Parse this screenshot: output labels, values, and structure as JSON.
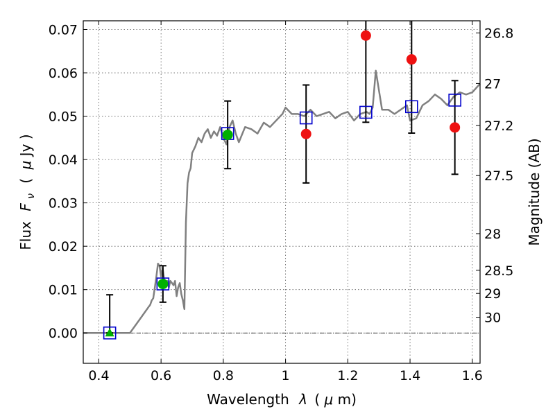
{
  "chart_data": {
    "type": "scatter",
    "xlabel_text": "Wavelength",
    "xlabel_sym": "λ",
    "xlabel_unit_pre": "(",
    "xlabel_mu": "μ",
    "xlabel_unit_post": "m)",
    "ylabel_text": "Flux",
    "ylabel_sym": "F",
    "ylabel_sub": "ν",
    "ylabel_unit_pre": "(",
    "ylabel_mu": "μ",
    "ylabel_unit_post": "Jy )",
    "y2label": "Magnitude (AB)",
    "xlim": [
      0.35,
      1.625
    ],
    "ylim": [
      -0.007,
      0.072
    ],
    "x_ticks": [
      {
        "value": 0.4,
        "label": "0.4"
      },
      {
        "value": 0.6,
        "label": "0.6"
      },
      {
        "value": 0.8,
        "label": "0.8"
      },
      {
        "value": 1.0,
        "label": "1"
      },
      {
        "value": 1.2,
        "label": "1.2"
      },
      {
        "value": 1.4,
        "label": "1.4"
      },
      {
        "value": 1.6,
        "label": "1.6"
      }
    ],
    "y_ticks": [
      {
        "value": 0.0,
        "label": "0.00"
      },
      {
        "value": 0.01,
        "label": "0.01"
      },
      {
        "value": 0.02,
        "label": "0.02"
      },
      {
        "value": 0.03,
        "label": "0.03"
      },
      {
        "value": 0.04,
        "label": "0.04"
      },
      {
        "value": 0.05,
        "label": "0.05"
      },
      {
        "value": 0.06,
        "label": "0.06"
      },
      {
        "value": 0.07,
        "label": "0.07"
      }
    ],
    "y2_ticks": [
      {
        "label": "26.8",
        "value": 26.8
      },
      {
        "label": "27",
        "value": 27.0
      },
      {
        "label": "27.2",
        "value": 27.2
      },
      {
        "label": "27.5",
        "value": 27.5
      },
      {
        "label": "28",
        "value": 28.0
      },
      {
        "label": "28.5",
        "value": 28.5
      },
      {
        "label": "29",
        "value": 29.0
      },
      {
        "label": "30",
        "value": 30.0
      }
    ],
    "grid": true,
    "colors": {
      "model": "#808080",
      "detection": "#00b000",
      "upper_limit": "#ee1111",
      "model_photometry": "#0000cc",
      "errorbar": "#000000"
    },
    "model_spectrum": {
      "x": [
        0.35,
        0.43,
        0.5,
        0.51,
        0.53,
        0.55,
        0.56,
        0.565,
        0.57,
        0.575,
        0.58,
        0.585,
        0.59,
        0.595,
        0.6,
        0.605,
        0.61,
        0.615,
        0.62,
        0.625,
        0.63,
        0.635,
        0.64,
        0.645,
        0.65,
        0.655,
        0.66,
        0.665,
        0.67,
        0.675,
        0.68,
        0.685,
        0.69,
        0.695,
        0.7,
        0.71,
        0.72,
        0.73,
        0.74,
        0.75,
        0.76,
        0.77,
        0.78,
        0.79,
        0.8,
        0.81,
        0.82,
        0.83,
        0.84,
        0.85,
        0.87,
        0.89,
        0.91,
        0.93,
        0.95,
        0.97,
        0.99,
        1.0,
        1.02,
        1.04,
        1.06,
        1.08,
        1.1,
        1.12,
        1.14,
        1.16,
        1.18,
        1.2,
        1.22,
        1.24,
        1.26,
        1.27,
        1.28,
        1.29,
        1.3,
        1.31,
        1.33,
        1.35,
        1.37,
        1.39,
        1.4,
        1.42,
        1.44,
        1.46,
        1.48,
        1.5,
        1.52,
        1.54,
        1.56,
        1.58,
        1.6,
        1.625
      ],
      "y": [
        0.0,
        0.0,
        0.0,
        0.001,
        0.003,
        0.005,
        0.006,
        0.0065,
        0.0075,
        0.008,
        0.0105,
        0.013,
        0.016,
        0.0155,
        0.013,
        0.015,
        0.0125,
        0.0115,
        0.012,
        0.0105,
        0.012,
        0.0115,
        0.011,
        0.012,
        0.0085,
        0.0105,
        0.0115,
        0.009,
        0.0075,
        0.0055,
        0.0255,
        0.0345,
        0.037,
        0.038,
        0.0415,
        0.043,
        0.045,
        0.044,
        0.046,
        0.047,
        0.045,
        0.0465,
        0.0455,
        0.0475,
        0.045,
        0.0435,
        0.0475,
        0.049,
        0.046,
        0.044,
        0.0475,
        0.047,
        0.046,
        0.0485,
        0.0475,
        0.049,
        0.0505,
        0.052,
        0.0505,
        0.0505,
        0.05,
        0.0515,
        0.05,
        0.0505,
        0.051,
        0.0495,
        0.0505,
        0.051,
        0.049,
        0.0505,
        0.051,
        0.0505,
        0.052,
        0.0605,
        0.056,
        0.0515,
        0.0515,
        0.0505,
        0.0515,
        0.0525,
        0.049,
        0.0495,
        0.0525,
        0.0535,
        0.055,
        0.054,
        0.0525,
        0.0545,
        0.0555,
        0.055,
        0.0555,
        0.0575
      ]
    },
    "model_photometry": {
      "name": "",
      "x": [
        0.435,
        0.606,
        0.814,
        1.066,
        1.258,
        1.405,
        1.544
      ],
      "y": [
        0.0,
        0.0113,
        0.046,
        0.0496,
        0.0509,
        0.0522,
        0.0537
      ]
    },
    "detections": {
      "x": [
        0.606,
        0.814
      ],
      "y": [
        0.0113,
        0.0457
      ],
      "yerr": [
        0.0042,
        0.0078
      ]
    },
    "nondetection_marker": {
      "x": 0.435,
      "y": 0.0,
      "yerr_up": 0.0088
    },
    "upper_limits": {
      "x": [
        1.066,
        1.258,
        1.405,
        1.544
      ],
      "y": [
        0.0459,
        0.0686,
        0.0631,
        0.0474
      ],
      "yerr": [
        0.0113,
        0.02,
        0.017,
        0.0108
      ]
    }
  }
}
